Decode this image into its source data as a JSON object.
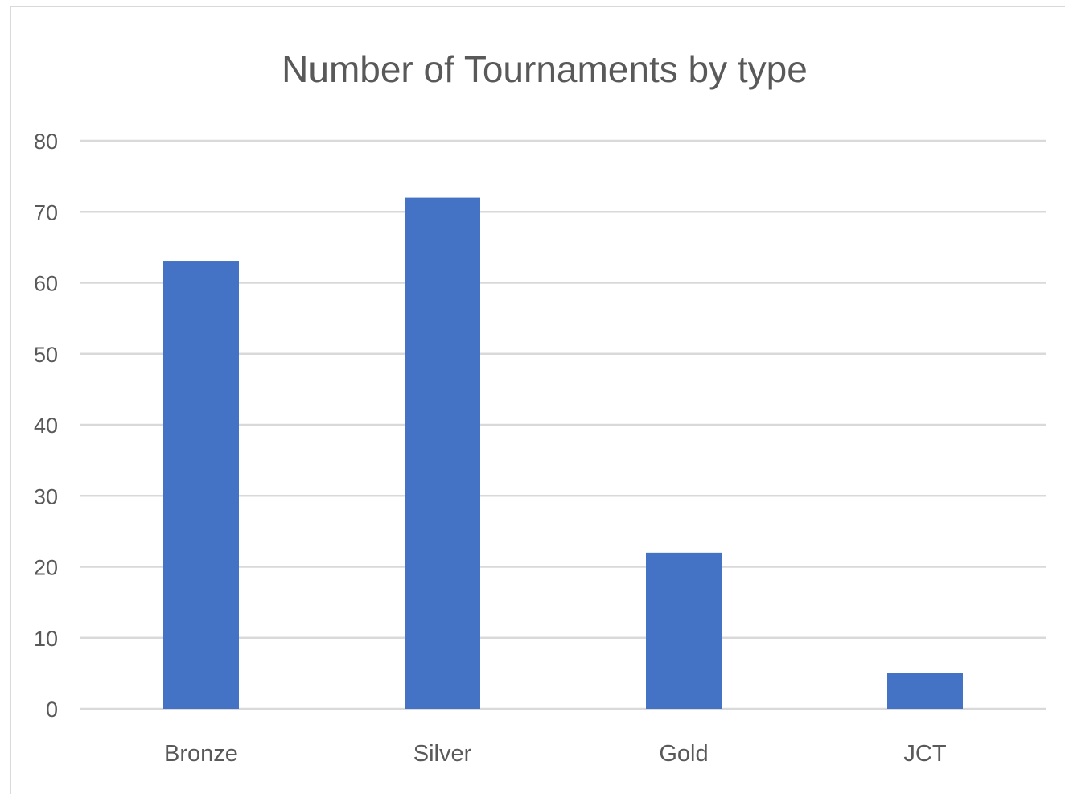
{
  "chart_data": {
    "type": "bar",
    "title": "Number of Tournaments by type",
    "categories": [
      "Bronze",
      "Silver",
      "Gold",
      "JCT"
    ],
    "values": [
      63,
      72,
      22,
      5
    ],
    "xlabel": "",
    "ylabel": "",
    "ylim": [
      0,
      80
    ],
    "yticks": [
      0,
      10,
      20,
      30,
      40,
      50,
      60,
      70,
      80
    ],
    "grid": true,
    "legend": "none",
    "colors": {
      "bar": "#4472c4",
      "gridline": "#d9d9d9",
      "text": "#595959",
      "frame": "#d9d9d9"
    }
  }
}
